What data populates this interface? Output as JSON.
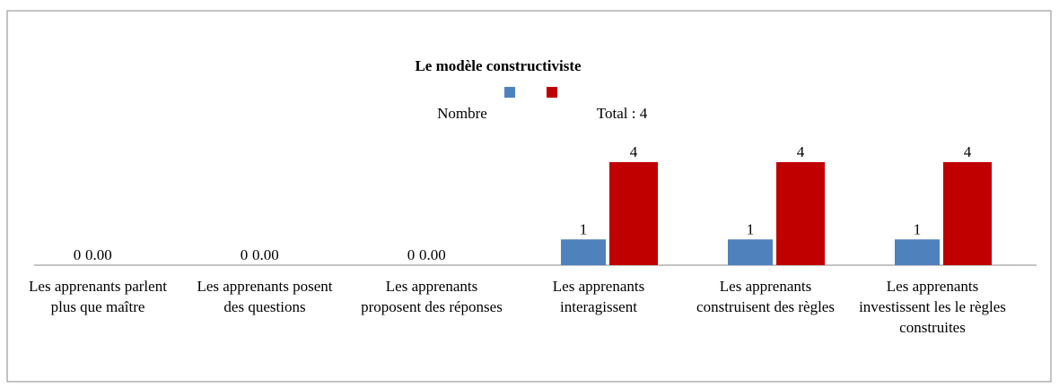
{
  "chart_data": {
    "type": "bar",
    "title": "Le modèle constructiviste",
    "categories": [
      "Les apprenants parlent plus que maître",
      "Les apprenants posent des questions",
      "Les apprenants proposent des réponses",
      "Les apprenants interagissent",
      "Les apprenants construisent des règles",
      "Les apprenants investissent les le règles construites"
    ],
    "series": [
      {
        "name": "Nombre",
        "color": "#4f81bd",
        "values": [
          0,
          0,
          0,
          1,
          1,
          1
        ]
      },
      {
        "name": "Total : 4",
        "color": "#c00000",
        "values": [
          0,
          0,
          0,
          4,
          4,
          4
        ],
        "value_labels": [
          "0.00",
          "0.00",
          "0.00",
          "4",
          "4",
          "4"
        ]
      }
    ]
  }
}
